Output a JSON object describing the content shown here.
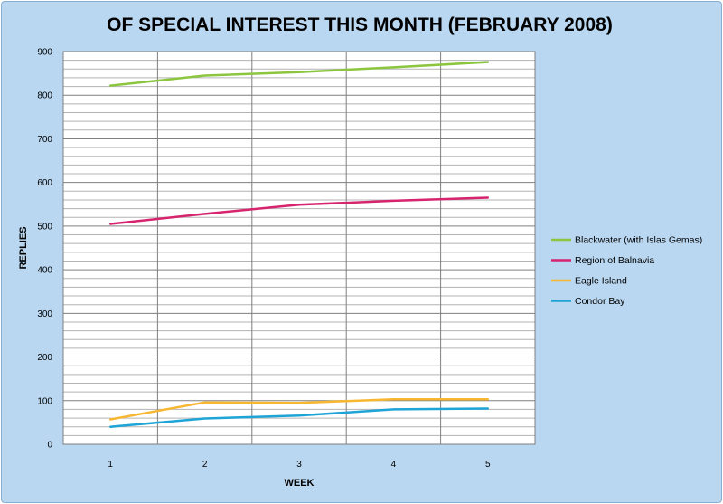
{
  "chart_data": {
    "type": "line",
    "title": "OF SPECIAL INTEREST THIS MONTH (FEBRUARY 2008)",
    "xlabel": "WEEK",
    "ylabel": "REPLIES",
    "x": [
      1,
      2,
      3,
      4,
      5
    ],
    "ylim": [
      0,
      900
    ],
    "yticks": [
      0,
      100,
      200,
      300,
      400,
      500,
      600,
      700,
      800,
      900
    ],
    "grid": true,
    "legend_position": "right",
    "series": [
      {
        "name": "Blackwater (with Islas Gemas)",
        "color": "#8cc63f",
        "values": [
          822,
          845,
          853,
          864,
          876
        ]
      },
      {
        "name": "Region of Balnavia",
        "color": "#d6246e",
        "values": [
          505,
          528,
          549,
          558,
          565
        ]
      },
      {
        "name": "Eagle Island",
        "color": "#f7b731",
        "values": [
          57,
          96,
          95,
          103,
          103
        ]
      },
      {
        "name": "Condor Bay",
        "color": "#1ea4d6",
        "values": [
          40,
          59,
          66,
          80,
          82
        ]
      }
    ]
  }
}
